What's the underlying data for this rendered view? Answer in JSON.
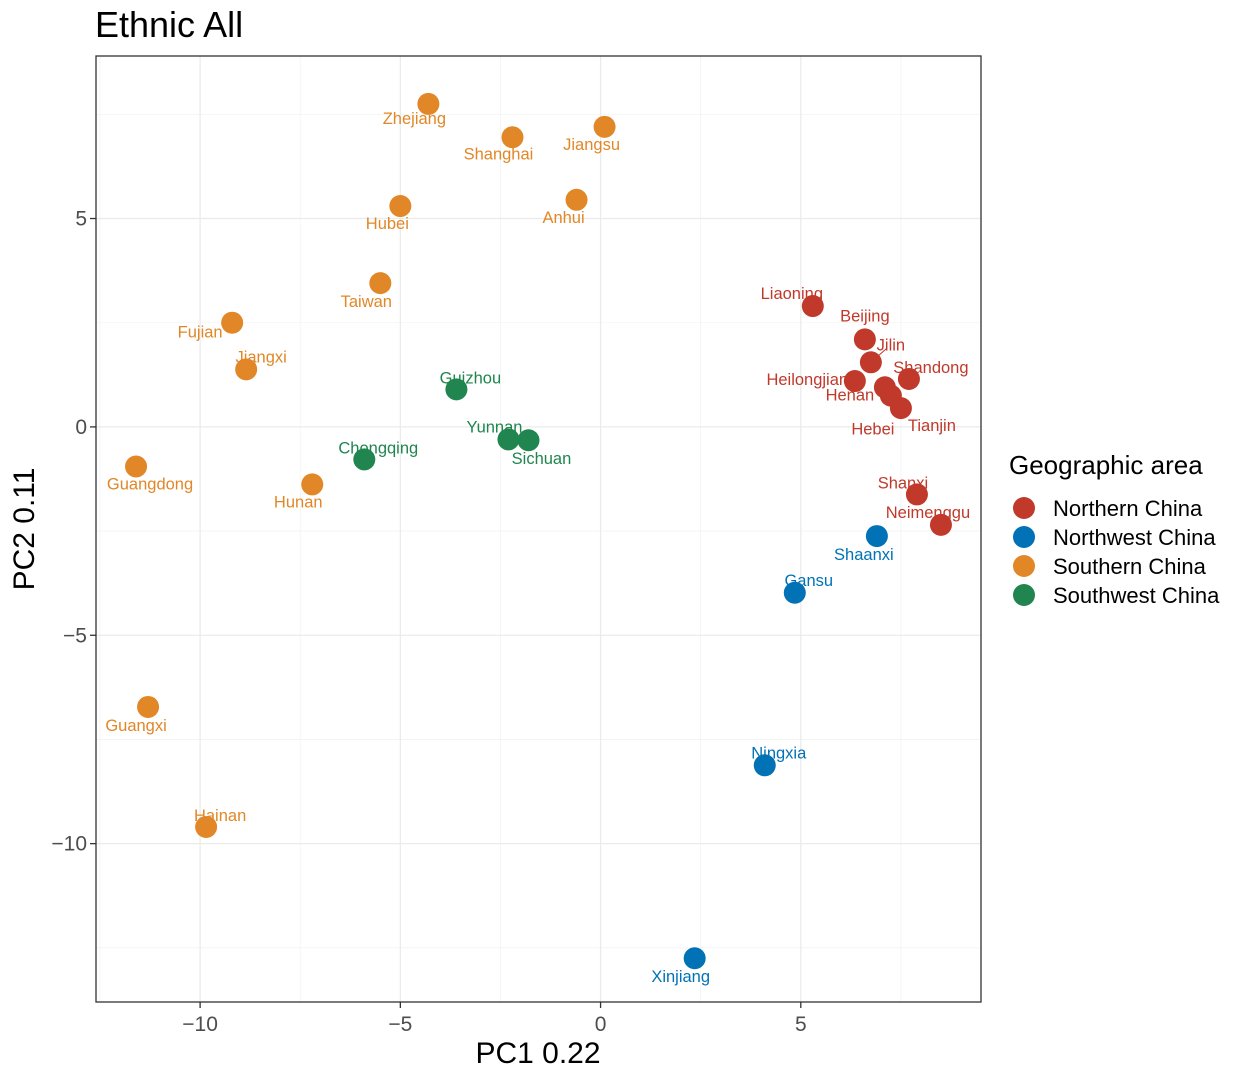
{
  "chart_data": {
    "type": "scatter",
    "title": "Ethnic All",
    "xlabel": "PC1  0.22",
    "ylabel": "PC2  0.11",
    "xlim": [
      -12.6,
      9.5
    ],
    "ylim": [
      -13.8,
      8.9
    ],
    "xticks": [
      -10,
      -5,
      0,
      5
    ],
    "yticks": [
      5,
      0,
      -5,
      -10
    ],
    "xtick_labels": [
      "−10",
      "−5",
      "0",
      "5"
    ],
    "ytick_labels": [
      "5",
      "0",
      "−5",
      "−10"
    ],
    "grid": true,
    "legend": {
      "title": "Geographic area",
      "position": "right",
      "entries": [
        {
          "name": "Northern China",
          "color": "#c0392b"
        },
        {
          "name": "Northwest China",
          "color": "#0072b5"
        },
        {
          "name": "Southern China",
          "color": "#e18727"
        },
        {
          "name": "Southwest China",
          "color": "#20854e"
        }
      ]
    },
    "points": [
      {
        "label": "Zhejiang",
        "x": -4.3,
        "y": 7.75,
        "group": "Southern China"
      },
      {
        "label": "Shanghai",
        "x": -2.2,
        "y": 6.95,
        "group": "Southern China"
      },
      {
        "label": "Jiangsu",
        "x": 0.1,
        "y": 7.2,
        "group": "Southern China"
      },
      {
        "label": "Hubei",
        "x": -5.0,
        "y": 5.3,
        "group": "Southern China"
      },
      {
        "label": "Anhui",
        "x": -0.6,
        "y": 5.45,
        "group": "Southern China"
      },
      {
        "label": "Taiwan",
        "x": -5.5,
        "y": 3.45,
        "group": "Southern China"
      },
      {
        "label": "Fujian",
        "x": -9.2,
        "y": 2.5,
        "group": "Southern China"
      },
      {
        "label": "Jiangxi",
        "x": -8.85,
        "y": 1.38,
        "group": "Southern China"
      },
      {
        "label": "Guangdong",
        "x": -11.6,
        "y": -0.95,
        "group": "Southern China"
      },
      {
        "label": "Hunan",
        "x": -7.2,
        "y": -1.38,
        "group": "Southern China"
      },
      {
        "label": "Guangxi",
        "x": -11.3,
        "y": -6.72,
        "group": "Southern China"
      },
      {
        "label": "Hainan",
        "x": -9.85,
        "y": -9.6,
        "group": "Southern China"
      },
      {
        "label": "Guizhou",
        "x": -3.6,
        "y": 0.9,
        "group": "Southwest China"
      },
      {
        "label": "Chongqing",
        "x": -5.9,
        "y": -0.78,
        "group": "Southwest China"
      },
      {
        "label": "Yunnan",
        "x": -2.3,
        "y": -0.3,
        "group": "Southwest China"
      },
      {
        "label": "Sichuan",
        "x": -1.8,
        "y": -0.32,
        "group": "Southwest China"
      },
      {
        "label": "Liaoning",
        "x": 5.3,
        "y": 2.9,
        "group": "Northern China"
      },
      {
        "label": "Beijing",
        "x": 6.6,
        "y": 2.1,
        "group": "Northern China"
      },
      {
        "label": "Jilin",
        "x": 6.75,
        "y": 1.55,
        "group": "Northern China"
      },
      {
        "label": "Heilongjiang",
        "x": 6.35,
        "y": 1.1,
        "group": "Northern China"
      },
      {
        "label": "Shandong",
        "x": 7.7,
        "y": 1.15,
        "group": "Northern China"
      },
      {
        "label": "Henan",
        "x": 7.1,
        "y": 0.95,
        "group": "Northern China"
      },
      {
        "label": "Hebei",
        "x": 7.25,
        "y": 0.75,
        "group": "Northern China"
      },
      {
        "label": "Tianjin",
        "x": 7.5,
        "y": 0.45,
        "group": "Northern China"
      },
      {
        "label": "Shanxi",
        "x": 7.9,
        "y": -1.62,
        "group": "Northern China"
      },
      {
        "label": "Neimenggu",
        "x": 8.5,
        "y": -2.35,
        "group": "Northern China"
      },
      {
        "label": "Shaanxi",
        "x": 6.9,
        "y": -2.62,
        "group": "Northwest China"
      },
      {
        "label": "Gansu",
        "x": 4.85,
        "y": -3.98,
        "group": "Northwest China"
      },
      {
        "label": "Ningxia",
        "x": 4.1,
        "y": -8.12,
        "group": "Northwest China"
      },
      {
        "label": "Xinjiang",
        "x": 2.35,
        "y": -12.75,
        "group": "Northwest China"
      }
    ]
  }
}
